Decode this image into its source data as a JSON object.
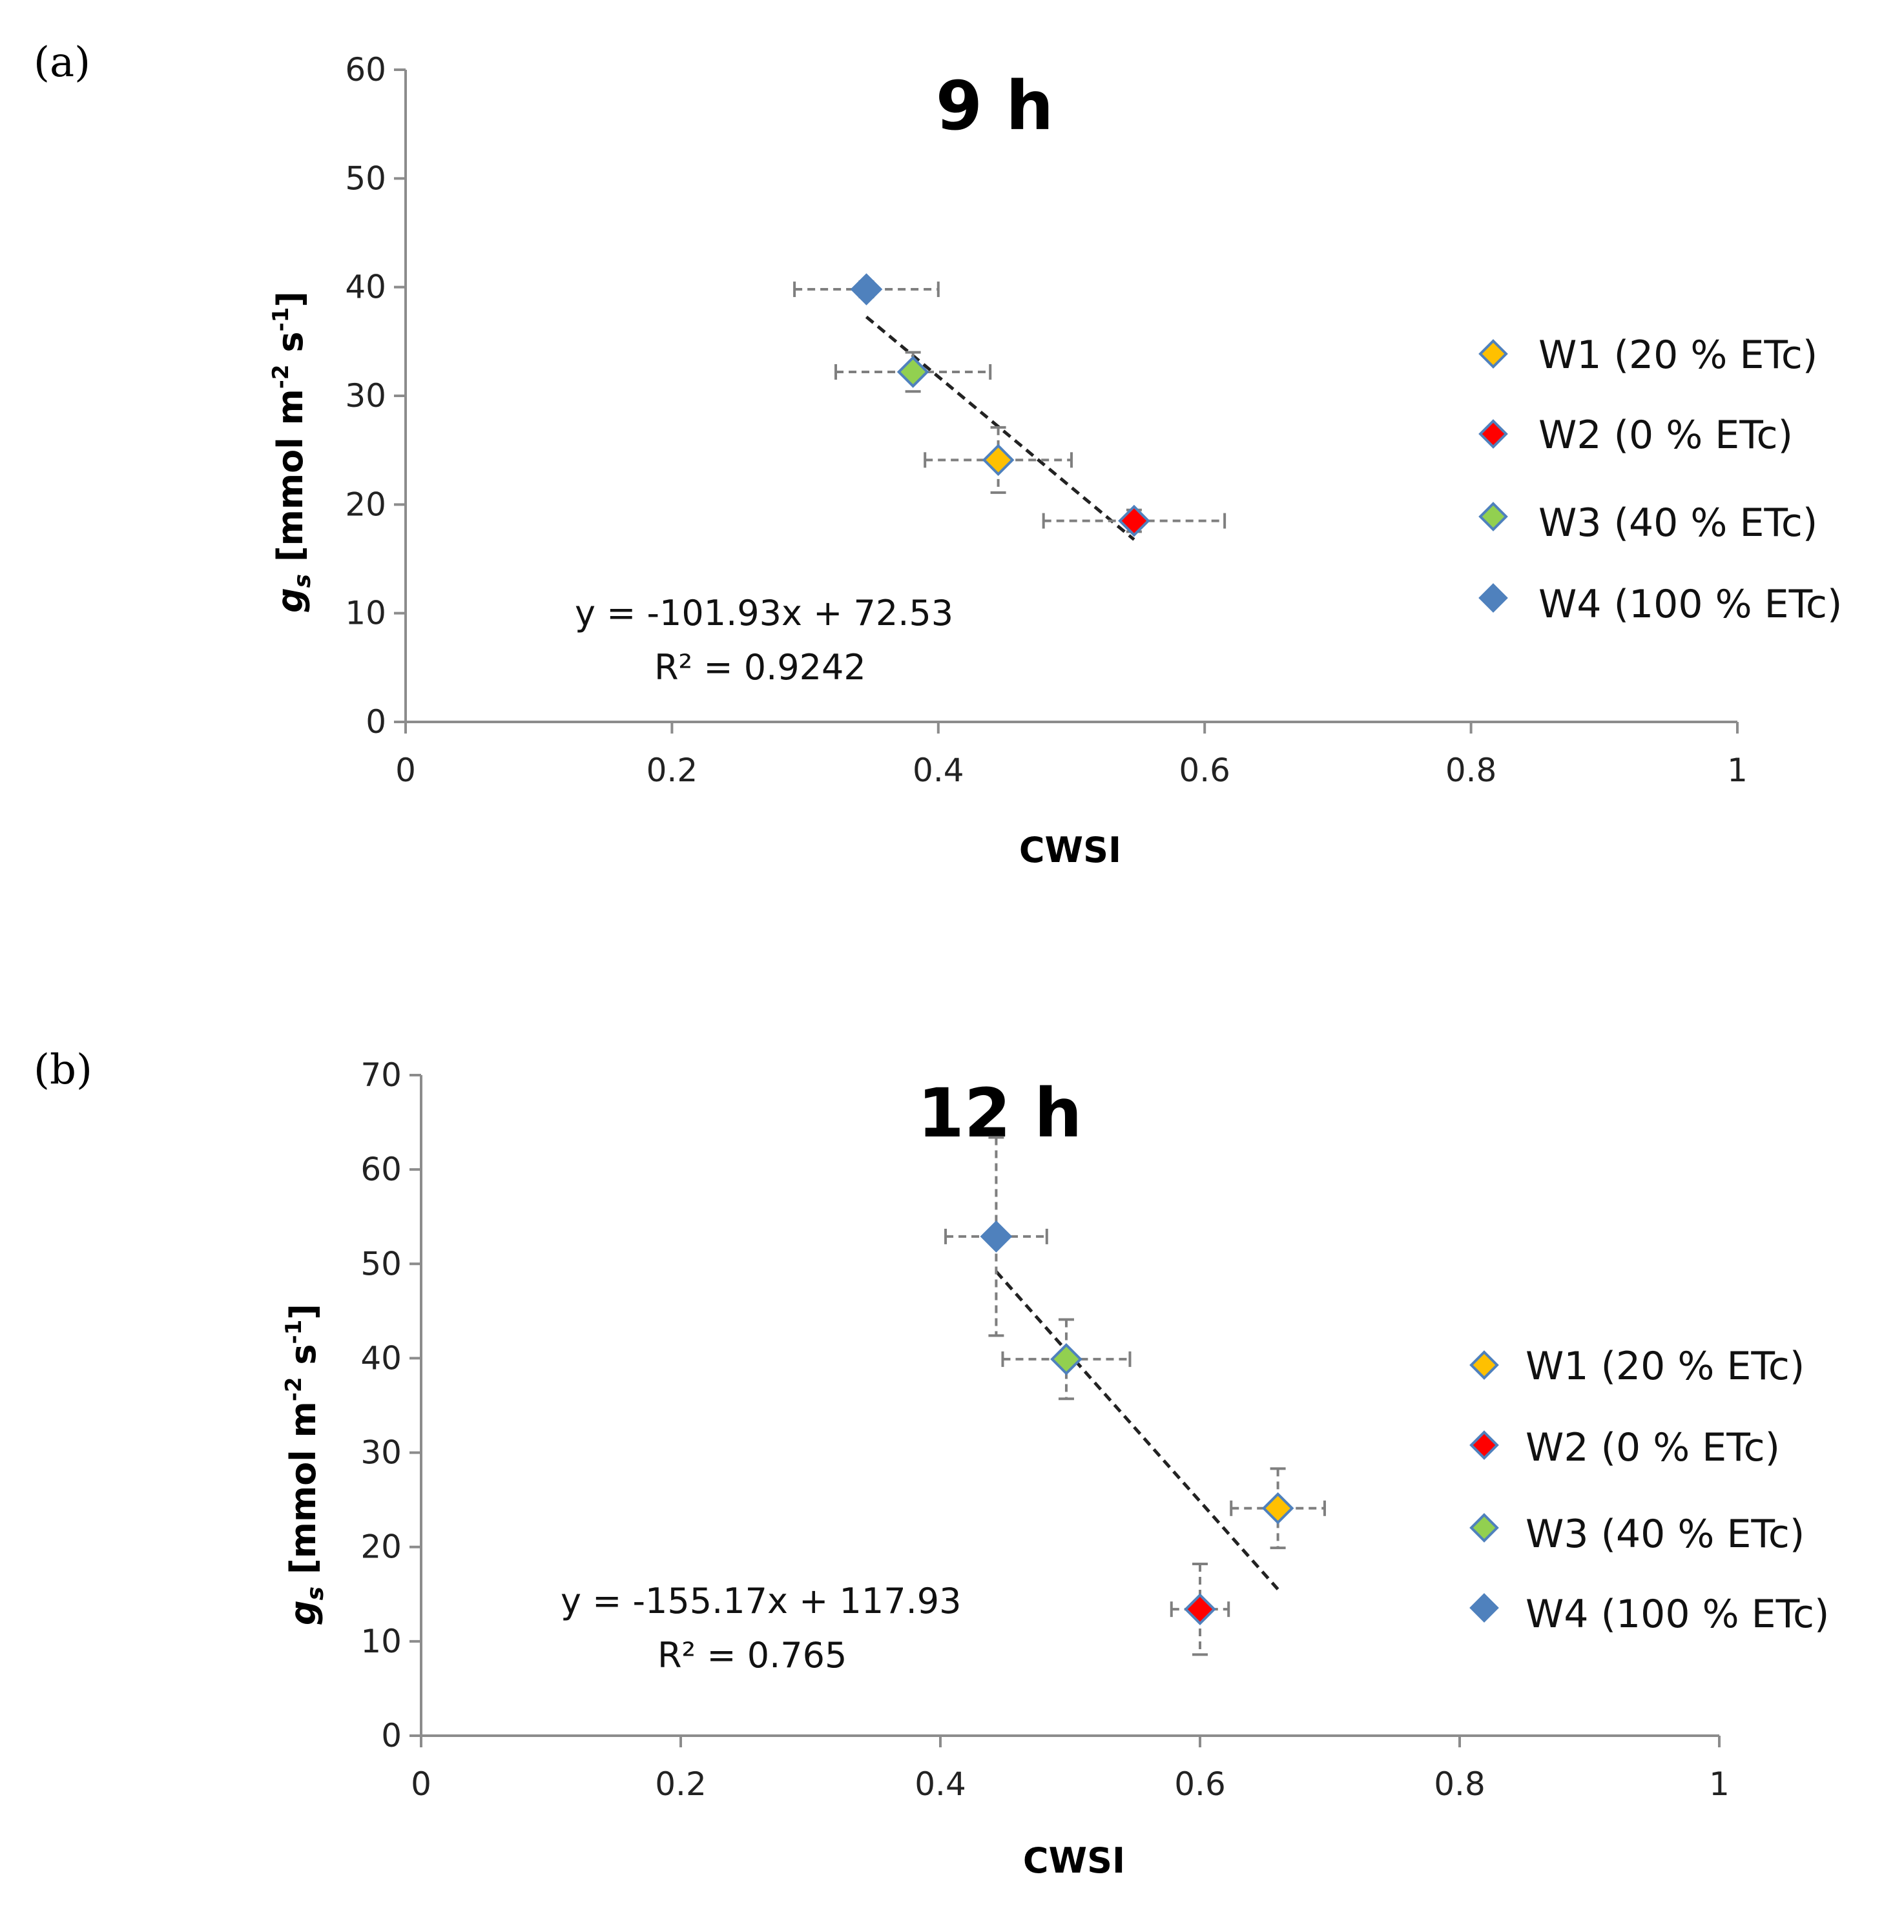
{
  "chart_data": [
    {
      "type": "scatter",
      "panel_label": "(a)",
      "title": "9 h",
      "xlabel": "CWSI",
      "ylabel_main": "g",
      "ylabel_sub": "s",
      "ylabel_rest": " [mmol m",
      "ylabel_exp1": "-2",
      "ylabel_mid": " s",
      "ylabel_exp2": "-1",
      "ylabel_end": "]",
      "xlim": [
        0,
        1
      ],
      "ylim": [
        0,
        60
      ],
      "xticks": [
        0,
        0.2,
        0.4,
        0.6,
        0.8,
        1
      ],
      "xtick_labels": [
        "0",
        "0.2",
        "0.4",
        "0.6",
        "0.8",
        "1"
      ],
      "yticks": [
        0,
        10,
        20,
        30,
        40,
        50,
        60
      ],
      "ytick_labels": [
        "0",
        "10",
        "20",
        "30",
        "40",
        "50",
        "60"
      ],
      "series": [
        {
          "name": "W1 (20 % ETc)",
          "color": "#FFC000",
          "x": 0.445,
          "y": 24.1,
          "xerr": 0.055,
          "yerr": 3.0
        },
        {
          "name": "W2 (0 % ETc)",
          "color": "#FF0000",
          "x": 0.547,
          "y": 18.5,
          "xerr": 0.068,
          "yerr": 1.0
        },
        {
          "name": "W3 (40 % ETc)",
          "color": "#92D050",
          "x": 0.381,
          "y": 32.2,
          "xerr": 0.058,
          "yerr": 1.8
        },
        {
          "name": "W4 (100 % ETc)",
          "color": "#4F81BD",
          "x": 0.346,
          "y": 39.8,
          "xerr": 0.054,
          "yerr": 0.7
        }
      ],
      "trendline": {
        "slope": -101.93,
        "intercept": 72.53,
        "x_range": [
          0.346,
          0.547
        ]
      },
      "equation": "y = -101.93x + 72.53",
      "r2_label": "R² = 0.9242"
    },
    {
      "type": "scatter",
      "panel_label": "(b)",
      "title": "12 h",
      "xlabel": "CWSI",
      "ylabel_main": "g",
      "ylabel_sub": "s",
      "ylabel_rest": " [mmol m",
      "ylabel_exp1": "-2",
      "ylabel_mid": " s",
      "ylabel_exp2": "-1",
      "ylabel_end": "]",
      "xlim": [
        0,
        1
      ],
      "ylim": [
        0,
        70
      ],
      "xticks": [
        0,
        0.2,
        0.4,
        0.6,
        0.8,
        1
      ],
      "xtick_labels": [
        "0",
        "0.2",
        "0.4",
        "0.6",
        "0.8",
        "1"
      ],
      "yticks": [
        0,
        10,
        20,
        30,
        40,
        50,
        60,
        70
      ],
      "ytick_labels": [
        "0",
        "10",
        "20",
        "30",
        "40",
        "50",
        "60",
        "70"
      ],
      "series": [
        {
          "name": "W1 (20 % ETc)",
          "color": "#FFC000",
          "x": 0.66,
          "y": 24.1,
          "xerr": 0.036,
          "yerr": 4.2
        },
        {
          "name": "W2 (0 % ETc)",
          "color": "#FF0000",
          "x": 0.6,
          "y": 13.4,
          "xerr": 0.022,
          "yerr": 4.8
        },
        {
          "name": "W3 (40 % ETc)",
          "color": "#92D050",
          "x": 0.497,
          "y": 39.9,
          "xerr": 0.049,
          "yerr": 4.2
        },
        {
          "name": "W4 (100 % ETc)",
          "color": "#4F81BD",
          "x": 0.443,
          "y": 52.9,
          "xerr": 0.039,
          "yerr": 10.5
        }
      ],
      "trendline": {
        "slope": -155.17,
        "intercept": 117.93,
        "x_range": [
          0.443,
          0.66
        ]
      },
      "equation": "y = -155.17x + 117.93",
      "r2_label": "R² = 0.765"
    }
  ]
}
